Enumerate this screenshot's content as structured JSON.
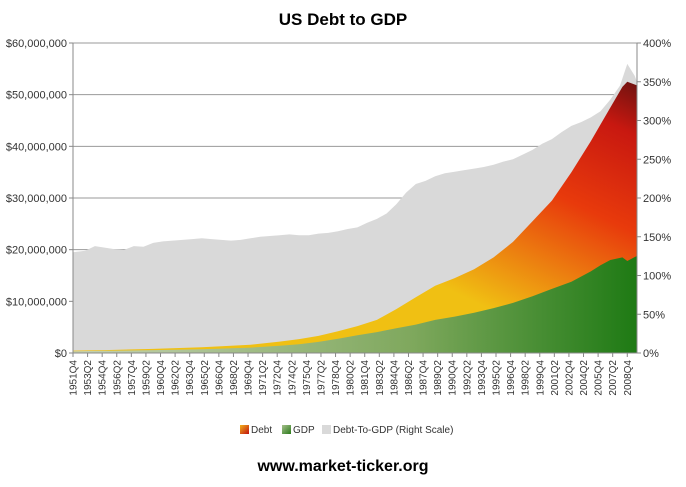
{
  "chart_data": {
    "type": "area",
    "title": "US Debt to GDP",
    "footer": "www.market-ticker.org",
    "left_axis": {
      "min": 0,
      "max": 60000000,
      "ticks": [
        {
          "value": 0,
          "label": "$0"
        },
        {
          "value": 10000000,
          "label": "$10,000,000"
        },
        {
          "value": 20000000,
          "label": "$20,000,000"
        },
        {
          "value": 30000000,
          "label": "$30,000,000"
        },
        {
          "value": 40000000,
          "label": "$40,000,000"
        },
        {
          "value": 50000000,
          "label": "$50,000,000"
        },
        {
          "value": 60000000,
          "label": "$60,000,000"
        }
      ]
    },
    "right_axis": {
      "min": 0,
      "max": 400,
      "ticks": [
        {
          "value": 0,
          "label": "0%"
        },
        {
          "value": 50,
          "label": "50%"
        },
        {
          "value": 100,
          "label": "100%"
        },
        {
          "value": 150,
          "label": "150%"
        },
        {
          "value": 200,
          "label": "200%"
        },
        {
          "value": 250,
          "label": "250%"
        },
        {
          "value": 300,
          "label": "300%"
        },
        {
          "value": 350,
          "label": "350%"
        },
        {
          "value": 400,
          "label": "400%"
        }
      ]
    },
    "x_range": [
      1951.75,
      2009.75
    ],
    "x_ticks": [
      {
        "value": 1951.75,
        "label": "1951Q4"
      },
      {
        "value": 1953.25,
        "label": "1953Q2"
      },
      {
        "value": 1954.75,
        "label": "1954Q4"
      },
      {
        "value": 1956.25,
        "label": "1956Q2"
      },
      {
        "value": 1957.75,
        "label": "1957Q4"
      },
      {
        "value": 1959.25,
        "label": "1959Q2"
      },
      {
        "value": 1960.75,
        "label": "1960Q4"
      },
      {
        "value": 1962.25,
        "label": "1962Q2"
      },
      {
        "value": 1963.75,
        "label": "1963Q4"
      },
      {
        "value": 1965.25,
        "label": "1965Q2"
      },
      {
        "value": 1966.75,
        "label": "1966Q4"
      },
      {
        "value": 1968.25,
        "label": "1968Q2"
      },
      {
        "value": 1969.75,
        "label": "1969Q4"
      },
      {
        "value": 1971.25,
        "label": "1971Q2"
      },
      {
        "value": 1972.75,
        "label": "1972Q4"
      },
      {
        "value": 1974.25,
        "label": "1974Q2"
      },
      {
        "value": 1975.75,
        "label": "1975Q4"
      },
      {
        "value": 1977.25,
        "label": "1977Q2"
      },
      {
        "value": 1978.75,
        "label": "1978Q4"
      },
      {
        "value": 1980.25,
        "label": "1980Q2"
      },
      {
        "value": 1981.75,
        "label": "1981Q4"
      },
      {
        "value": 1983.25,
        "label": "1983Q2"
      },
      {
        "value": 1984.75,
        "label": "1984Q4"
      },
      {
        "value": 1986.25,
        "label": "1986Q2"
      },
      {
        "value": 1987.75,
        "label": "1987Q4"
      },
      {
        "value": 1989.25,
        "label": "1989Q2"
      },
      {
        "value": 1990.75,
        "label": "1990Q4"
      },
      {
        "value": 1992.25,
        "label": "1992Q2"
      },
      {
        "value": 1993.75,
        "label": "1993Q4"
      },
      {
        "value": 1995.25,
        "label": "1995Q2"
      },
      {
        "value": 1996.75,
        "label": "1996Q4"
      },
      {
        "value": 1998.25,
        "label": "1998Q2"
      },
      {
        "value": 1999.75,
        "label": "1999Q4"
      },
      {
        "value": 2001.25,
        "label": "2001Q2"
      },
      {
        "value": 2002.75,
        "label": "2002Q4"
      },
      {
        "value": 2004.25,
        "label": "2004Q2"
      },
      {
        "value": 2005.75,
        "label": "2005Q4"
      },
      {
        "value": 2007.25,
        "label": "2007Q2"
      },
      {
        "value": 2008.75,
        "label": "2008Q4"
      }
    ],
    "grid": true,
    "legend_position": "bottom",
    "series": [
      {
        "name": "Debt-To-GDP (Right Scale)",
        "axis": "right",
        "color": "#d9d9d9",
        "points": [
          [
            1951.75,
            130
          ],
          [
            1953,
            132
          ],
          [
            1954,
            138
          ],
          [
            1955,
            136
          ],
          [
            1956,
            134
          ],
          [
            1957,
            133
          ],
          [
            1958,
            138
          ],
          [
            1959,
            137
          ],
          [
            1960,
            142
          ],
          [
            1961,
            144
          ],
          [
            1962,
            145
          ],
          [
            1963,
            146
          ],
          [
            1964,
            147
          ],
          [
            1965,
            148
          ],
          [
            1966,
            147
          ],
          [
            1967,
            146
          ],
          [
            1968,
            145
          ],
          [
            1969,
            146
          ],
          [
            1970,
            148
          ],
          [
            1971,
            150
          ],
          [
            1972,
            151
          ],
          [
            1973,
            152
          ],
          [
            1974,
            153
          ],
          [
            1975,
            152
          ],
          [
            1976,
            152
          ],
          [
            1977,
            154
          ],
          [
            1978,
            155
          ],
          [
            1979,
            157
          ],
          [
            1980,
            160
          ],
          [
            1981,
            162
          ],
          [
            1982,
            168
          ],
          [
            1983,
            173
          ],
          [
            1984,
            180
          ],
          [
            1985,
            192
          ],
          [
            1986,
            207
          ],
          [
            1987,
            218
          ],
          [
            1988,
            222
          ],
          [
            1989,
            228
          ],
          [
            1990,
            232
          ],
          [
            1991,
            234
          ],
          [
            1992,
            236
          ],
          [
            1993,
            238
          ],
          [
            1994,
            240
          ],
          [
            1995,
            243
          ],
          [
            1996,
            247
          ],
          [
            1997,
            250
          ],
          [
            1998,
            256
          ],
          [
            1999,
            262
          ],
          [
            2000,
            270
          ],
          [
            2001,
            276
          ],
          [
            2002,
            285
          ],
          [
            2003,
            293
          ],
          [
            2004,
            298
          ],
          [
            2005,
            304
          ],
          [
            2006,
            312
          ],
          [
            2007,
            327
          ],
          [
            2008,
            345
          ],
          [
            2008.75,
            373
          ],
          [
            2009.5,
            358
          ],
          [
            2009.75,
            350
          ]
        ]
      },
      {
        "name": "Debt",
        "axis": "left",
        "colors": [
          "#f5c518",
          "#e53010",
          "#8b1a10"
        ],
        "points": [
          [
            1951.75,
            460000
          ],
          [
            1955,
            560000
          ],
          [
            1960,
            800000
          ],
          [
            1965,
            1100000
          ],
          [
            1970,
            1600000
          ],
          [
            1973,
            2200000
          ],
          [
            1975,
            2700000
          ],
          [
            1977,
            3300000
          ],
          [
            1979,
            4200000
          ],
          [
            1981,
            5200000
          ],
          [
            1983,
            6400000
          ],
          [
            1985,
            8500000
          ],
          [
            1987,
            10800000
          ],
          [
            1989,
            13000000
          ],
          [
            1991,
            14500000
          ],
          [
            1993,
            16200000
          ],
          [
            1995,
            18500000
          ],
          [
            1997,
            21500000
          ],
          [
            1999,
            25500000
          ],
          [
            2001,
            29500000
          ],
          [
            2003,
            35000000
          ],
          [
            2005,
            41000000
          ],
          [
            2007,
            47500000
          ],
          [
            2008.25,
            51500000
          ],
          [
            2008.75,
            52500000
          ],
          [
            2009.75,
            51800000
          ]
        ]
      },
      {
        "name": "GDP",
        "axis": "left",
        "colors": [
          "#c7d3b5",
          "#2e7d1e"
        ],
        "points": [
          [
            1951.75,
            350000
          ],
          [
            1955,
            420000
          ],
          [
            1960,
            560000
          ],
          [
            1965,
            730000
          ],
          [
            1970,
            1050000
          ],
          [
            1973,
            1400000
          ],
          [
            1975,
            1700000
          ],
          [
            1977,
            2150000
          ],
          [
            1979,
            2750000
          ],
          [
            1981,
            3450000
          ],
          [
            1983,
            4050000
          ],
          [
            1985,
            4800000
          ],
          [
            1987,
            5500000
          ],
          [
            1989,
            6400000
          ],
          [
            1991,
            7050000
          ],
          [
            1993,
            7800000
          ],
          [
            1995,
            8700000
          ],
          [
            1997,
            9700000
          ],
          [
            1999,
            11000000
          ],
          [
            2001,
            12400000
          ],
          [
            2003,
            13800000
          ],
          [
            2005,
            15800000
          ],
          [
            2006,
            17000000
          ],
          [
            2007,
            18000000
          ],
          [
            2008.25,
            18500000
          ],
          [
            2008.75,
            17800000
          ],
          [
            2009.75,
            18800000
          ]
        ]
      }
    ]
  }
}
